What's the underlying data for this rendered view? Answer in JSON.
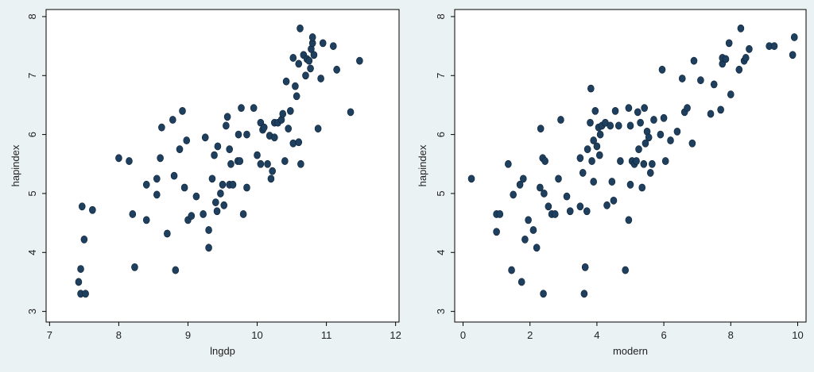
{
  "chart_data": [
    {
      "type": "scatter",
      "title": "",
      "xlabel": "lngdp",
      "ylabel": "hapindex",
      "xlim": [
        7,
        12
      ],
      "ylim": [
        3,
        8
      ],
      "xticks": [
        "7",
        "8",
        "9",
        "10",
        "11",
        "12"
      ],
      "yticks": [
        "3",
        "4",
        "5",
        "6",
        "7",
        "8"
      ],
      "grid": false,
      "marker_color": "#1f3f5f",
      "points": [
        [
          7.45,
          3.3
        ],
        [
          7.52,
          3.3
        ],
        [
          7.42,
          3.5
        ],
        [
          7.45,
          3.72
        ],
        [
          7.5,
          4.22
        ],
        [
          7.47,
          4.78
        ],
        [
          7.62,
          4.72
        ],
        [
          8.0,
          5.6
        ],
        [
          8.15,
          5.55
        ],
        [
          8.2,
          4.65
        ],
        [
          8.23,
          3.75
        ],
        [
          8.4,
          4.55
        ],
        [
          8.4,
          5.15
        ],
        [
          8.55,
          4.98
        ],
        [
          8.55,
          5.25
        ],
        [
          8.6,
          5.6
        ],
        [
          8.62,
          6.12
        ],
        [
          8.7,
          4.32
        ],
        [
          8.78,
          6.25
        ],
        [
          8.8,
          5.3
        ],
        [
          8.82,
          3.7
        ],
        [
          8.88,
          5.75
        ],
        [
          8.92,
          6.4
        ],
        [
          8.95,
          5.1
        ],
        [
          8.98,
          5.9
        ],
        [
          9.0,
          4.55
        ],
        [
          9.05,
          4.62
        ],
        [
          9.12,
          4.95
        ],
        [
          9.22,
          4.65
        ],
        [
          9.25,
          5.95
        ],
        [
          9.3,
          4.08
        ],
        [
          9.3,
          4.38
        ],
        [
          9.35,
          5.25
        ],
        [
          9.38,
          5.65
        ],
        [
          9.4,
          4.85
        ],
        [
          9.42,
          4.7
        ],
        [
          9.43,
          5.8
        ],
        [
          9.47,
          5.0
        ],
        [
          9.5,
          5.15
        ],
        [
          9.52,
          4.8
        ],
        [
          9.55,
          6.15
        ],
        [
          9.57,
          6.3
        ],
        [
          9.6,
          5.75
        ],
        [
          9.6,
          5.15
        ],
        [
          9.62,
          5.5
        ],
        [
          9.65,
          5.15
        ],
        [
          9.72,
          5.55
        ],
        [
          9.73,
          6.0
        ],
        [
          9.75,
          5.55
        ],
        [
          9.77,
          6.45
        ],
        [
          9.8,
          4.65
        ],
        [
          9.85,
          5.1
        ],
        [
          9.85,
          6.0
        ],
        [
          9.95,
          6.45
        ],
        [
          10.0,
          5.65
        ],
        [
          10.05,
          6.2
        ],
        [
          10.05,
          5.5
        ],
        [
          10.08,
          6.08
        ],
        [
          10.1,
          6.12
        ],
        [
          10.15,
          5.5
        ],
        [
          10.18,
          5.98
        ],
        [
          10.2,
          5.25
        ],
        [
          10.22,
          5.38
        ],
        [
          10.25,
          5.95
        ],
        [
          10.25,
          6.2
        ],
        [
          10.3,
          6.2
        ],
        [
          10.35,
          6.25
        ],
        [
          10.37,
          6.35
        ],
        [
          10.4,
          5.55
        ],
        [
          10.42,
          6.9
        ],
        [
          10.45,
          6.1
        ],
        [
          10.48,
          6.4
        ],
        [
          10.52,
          5.85
        ],
        [
          10.52,
          7.3
        ],
        [
          10.55,
          6.82
        ],
        [
          10.57,
          6.65
        ],
        [
          10.6,
          5.87
        ],
        [
          10.6,
          7.2
        ],
        [
          10.62,
          7.8
        ],
        [
          10.63,
          5.5
        ],
        [
          10.67,
          7.35
        ],
        [
          10.7,
          7.0
        ],
        [
          10.72,
          7.28
        ],
        [
          10.75,
          7.25
        ],
        [
          10.77,
          7.12
        ],
        [
          10.78,
          7.45
        ],
        [
          10.8,
          7.55
        ],
        [
          10.8,
          7.65
        ],
        [
          10.82,
          7.35
        ],
        [
          10.88,
          6.1
        ],
        [
          10.92,
          6.95
        ],
        [
          10.95,
          7.55
        ],
        [
          11.1,
          7.5
        ],
        [
          11.15,
          7.1
        ],
        [
          11.35,
          6.38
        ],
        [
          11.48,
          7.25
        ]
      ]
    },
    {
      "type": "scatter",
      "title": "",
      "xlabel": "modern",
      "ylabel": "hapindex",
      "xlim": [
        0,
        10
      ],
      "ylim": [
        3,
        8
      ],
      "xticks": [
        "0",
        "2",
        "4",
        "6",
        "8",
        "10"
      ],
      "yticks": [
        "3",
        "4",
        "5",
        "6",
        "7",
        "8"
      ],
      "grid": false,
      "marker_color": "#1f3f5f",
      "points": [
        [
          0.25,
          5.25
        ],
        [
          1.0,
          4.65
        ],
        [
          1.1,
          4.65
        ],
        [
          1.0,
          4.35
        ],
        [
          1.35,
          5.5
        ],
        [
          1.45,
          3.7
        ],
        [
          1.5,
          4.98
        ],
        [
          1.7,
          5.15
        ],
        [
          1.8,
          5.25
        ],
        [
          1.75,
          3.5
        ],
        [
          1.85,
          4.22
        ],
        [
          1.95,
          4.55
        ],
        [
          2.1,
          4.38
        ],
        [
          2.2,
          4.08
        ],
        [
          2.3,
          5.1
        ],
        [
          2.32,
          6.1
        ],
        [
          2.38,
          5.6
        ],
        [
          2.45,
          5.55
        ],
        [
          2.4,
          3.3
        ],
        [
          2.42,
          5.0
        ],
        [
          2.55,
          4.78
        ],
        [
          2.65,
          4.65
        ],
        [
          2.75,
          4.65
        ],
        [
          2.85,
          5.25
        ],
        [
          2.92,
          6.25
        ],
        [
          3.1,
          4.95
        ],
        [
          3.2,
          4.7
        ],
        [
          3.5,
          4.78
        ],
        [
          3.5,
          5.6
        ],
        [
          3.58,
          5.35
        ],
        [
          3.62,
          3.3
        ],
        [
          3.65,
          3.75
        ],
        [
          3.7,
          4.7
        ],
        [
          3.72,
          5.75
        ],
        [
          3.8,
          6.2
        ],
        [
          3.82,
          6.78
        ],
        [
          3.85,
          5.55
        ],
        [
          3.9,
          5.2
        ],
        [
          3.9,
          5.9
        ],
        [
          3.95,
          6.4
        ],
        [
          4.0,
          5.8
        ],
        [
          4.05,
          6.12
        ],
        [
          4.08,
          5.65
        ],
        [
          4.1,
          6.0
        ],
        [
          4.15,
          6.15
        ],
        [
          4.25,
          6.2
        ],
        [
          4.3,
          4.8
        ],
        [
          4.4,
          6.15
        ],
        [
          4.45,
          5.2
        ],
        [
          4.5,
          4.88
        ],
        [
          4.55,
          6.4
        ],
        [
          4.65,
          6.15
        ],
        [
          4.7,
          5.55
        ],
        [
          4.85,
          3.7
        ],
        [
          4.95,
          6.45
        ],
        [
          4.95,
          4.55
        ],
        [
          5.0,
          5.15
        ],
        [
          5.0,
          6.15
        ],
        [
          5.05,
          5.55
        ],
        [
          5.12,
          5.5
        ],
        [
          5.18,
          5.55
        ],
        [
          5.22,
          6.38
        ],
        [
          5.25,
          5.75
        ],
        [
          5.3,
          6.2
        ],
        [
          5.35,
          5.1
        ],
        [
          5.4,
          5.5
        ],
        [
          5.42,
          6.45
        ],
        [
          5.45,
          5.85
        ],
        [
          5.5,
          6.05
        ],
        [
          5.55,
          5.95
        ],
        [
          5.6,
          5.35
        ],
        [
          5.65,
          5.5
        ],
        [
          5.7,
          6.25
        ],
        [
          5.9,
          6.0
        ],
        [
          5.95,
          7.1
        ],
        [
          6.0,
          6.28
        ],
        [
          6.05,
          5.55
        ],
        [
          6.2,
          5.9
        ],
        [
          6.4,
          6.05
        ],
        [
          6.55,
          6.95
        ],
        [
          6.62,
          6.38
        ],
        [
          6.7,
          6.45
        ],
        [
          6.85,
          5.85
        ],
        [
          6.9,
          7.25
        ],
        [
          7.1,
          6.92
        ],
        [
          7.4,
          6.35
        ],
        [
          7.5,
          6.85
        ],
        [
          7.7,
          6.42
        ],
        [
          7.75,
          7.2
        ],
        [
          7.75,
          7.3
        ],
        [
          7.85,
          7.28
        ],
        [
          7.95,
          7.55
        ],
        [
          8.0,
          6.68
        ],
        [
          8.25,
          7.1
        ],
        [
          8.3,
          7.8
        ],
        [
          8.4,
          7.25
        ],
        [
          8.45,
          7.3
        ],
        [
          8.55,
          7.45
        ],
        [
          9.15,
          7.5
        ],
        [
          9.3,
          7.5
        ],
        [
          9.85,
          7.35
        ],
        [
          9.9,
          7.65
        ]
      ]
    }
  ]
}
